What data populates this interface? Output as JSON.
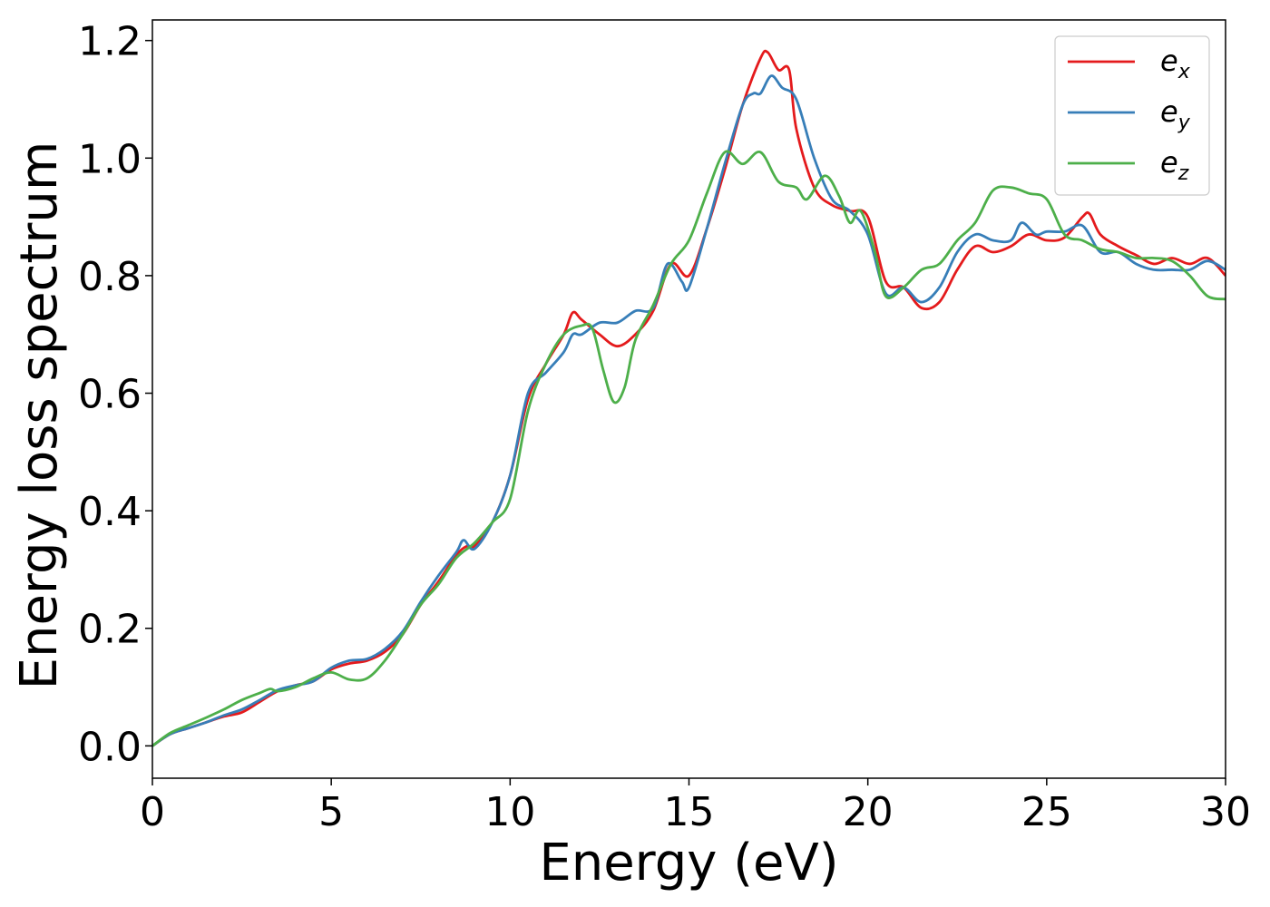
{
  "chart_data": {
    "type": "line",
    "title": "",
    "xlabel": "Energy (eV)",
    "ylabel": "Energy loss spectrum",
    "xlim": [
      0,
      30
    ],
    "ylim": [
      -0.055,
      1.235
    ],
    "x_ticks": [
      "0",
      "5",
      "10",
      "15",
      "20",
      "25",
      "30"
    ],
    "y_ticks": [
      "0.0",
      "0.2",
      "0.4",
      "0.6",
      "0.8",
      "1.0",
      "1.2"
    ],
    "grid": false,
    "legend_position": "top-right",
    "series": [
      {
        "name": "e_x",
        "legend_base": "e",
        "legend_sub": "x",
        "color": "#e41a1c",
        "points": [
          [
            0,
            0.0
          ],
          [
            0.5,
            0.02
          ],
          [
            1,
            0.03
          ],
          [
            1.5,
            0.04
          ],
          [
            2,
            0.05
          ],
          [
            2.5,
            0.057
          ],
          [
            3,
            0.075
          ],
          [
            3.5,
            0.093
          ],
          [
            4,
            0.103
          ],
          [
            4.5,
            0.11
          ],
          [
            5,
            0.13
          ],
          [
            5.5,
            0.14
          ],
          [
            6,
            0.145
          ],
          [
            6.5,
            0.16
          ],
          [
            7,
            0.19
          ],
          [
            7.5,
            0.24
          ],
          [
            8,
            0.28
          ],
          [
            8.5,
            0.325
          ],
          [
            8.8,
            0.34
          ],
          [
            9,
            0.34
          ],
          [
            9.5,
            0.38
          ],
          [
            10,
            0.46
          ],
          [
            10.5,
            0.59
          ],
          [
            11,
            0.65
          ],
          [
            11.5,
            0.7
          ],
          [
            11.75,
            0.737
          ],
          [
            12,
            0.725
          ],
          [
            12.5,
            0.7
          ],
          [
            13,
            0.68
          ],
          [
            13.5,
            0.7
          ],
          [
            14,
            0.74
          ],
          [
            14.5,
            0.82
          ],
          [
            15,
            0.8
          ],
          [
            15.5,
            0.88
          ],
          [
            16,
            0.98
          ],
          [
            16.5,
            1.09
          ],
          [
            17,
            1.17
          ],
          [
            17.2,
            1.18
          ],
          [
            17.5,
            1.15
          ],
          [
            17.8,
            1.15
          ],
          [
            18,
            1.05
          ],
          [
            18.5,
            0.95
          ],
          [
            19,
            0.92
          ],
          [
            19.5,
            0.91
          ],
          [
            20,
            0.9
          ],
          [
            20.5,
            0.79
          ],
          [
            21,
            0.78
          ],
          [
            21.5,
            0.745
          ],
          [
            22,
            0.755
          ],
          [
            22.5,
            0.81
          ],
          [
            23,
            0.85
          ],
          [
            23.5,
            0.84
          ],
          [
            24,
            0.85
          ],
          [
            24.5,
            0.87
          ],
          [
            25,
            0.86
          ],
          [
            25.5,
            0.865
          ],
          [
            26,
            0.9
          ],
          [
            26.2,
            0.905
          ],
          [
            26.5,
            0.87
          ],
          [
            27,
            0.85
          ],
          [
            27.5,
            0.835
          ],
          [
            28,
            0.82
          ],
          [
            28.5,
            0.83
          ],
          [
            29,
            0.82
          ],
          [
            29.5,
            0.83
          ],
          [
            30,
            0.8
          ]
        ]
      },
      {
        "name": "e_y",
        "legend_base": "e",
        "legend_sub": "y",
        "color": "#377eb8",
        "points": [
          [
            0,
            0.0
          ],
          [
            0.5,
            0.02
          ],
          [
            1,
            0.03
          ],
          [
            1.5,
            0.04
          ],
          [
            2,
            0.052
          ],
          [
            2.5,
            0.062
          ],
          [
            3,
            0.078
          ],
          [
            3.5,
            0.095
          ],
          [
            4,
            0.103
          ],
          [
            4.5,
            0.11
          ],
          [
            5,
            0.133
          ],
          [
            5.5,
            0.145
          ],
          [
            6,
            0.148
          ],
          [
            6.5,
            0.165
          ],
          [
            7,
            0.195
          ],
          [
            7.5,
            0.245
          ],
          [
            8,
            0.29
          ],
          [
            8.5,
            0.33
          ],
          [
            8.7,
            0.35
          ],
          [
            9,
            0.335
          ],
          [
            9.5,
            0.38
          ],
          [
            10,
            0.46
          ],
          [
            10.5,
            0.6
          ],
          [
            11,
            0.635
          ],
          [
            11.5,
            0.67
          ],
          [
            11.75,
            0.7
          ],
          [
            12,
            0.7
          ],
          [
            12.5,
            0.72
          ],
          [
            13,
            0.72
          ],
          [
            13.5,
            0.74
          ],
          [
            14,
            0.745
          ],
          [
            14.4,
            0.82
          ],
          [
            14.8,
            0.79
          ],
          [
            15,
            0.78
          ],
          [
            15.5,
            0.88
          ],
          [
            16,
            0.99
          ],
          [
            16.5,
            1.09
          ],
          [
            16.8,
            1.11
          ],
          [
            17,
            1.11
          ],
          [
            17.3,
            1.14
          ],
          [
            17.6,
            1.12
          ],
          [
            18,
            1.1
          ],
          [
            18.5,
            1.0
          ],
          [
            19,
            0.93
          ],
          [
            19.5,
            0.91
          ],
          [
            20,
            0.87
          ],
          [
            20.5,
            0.77
          ],
          [
            21,
            0.78
          ],
          [
            21.5,
            0.755
          ],
          [
            22,
            0.78
          ],
          [
            22.5,
            0.84
          ],
          [
            23,
            0.87
          ],
          [
            23.5,
            0.86
          ],
          [
            24,
            0.86
          ],
          [
            24.3,
            0.89
          ],
          [
            24.7,
            0.87
          ],
          [
            25,
            0.875
          ],
          [
            25.5,
            0.875
          ],
          [
            26,
            0.885
          ],
          [
            26.5,
            0.84
          ],
          [
            27,
            0.84
          ],
          [
            27.5,
            0.82
          ],
          [
            28,
            0.81
          ],
          [
            28.5,
            0.81
          ],
          [
            29,
            0.81
          ],
          [
            29.5,
            0.825
          ],
          [
            30,
            0.81
          ]
        ]
      },
      {
        "name": "e_z",
        "legend_base": "e",
        "legend_sub": "z",
        "color": "#4daf4a",
        "points": [
          [
            0,
            0.0
          ],
          [
            0.5,
            0.022
          ],
          [
            1,
            0.035
          ],
          [
            1.5,
            0.048
          ],
          [
            2,
            0.062
          ],
          [
            2.5,
            0.078
          ],
          [
            3,
            0.09
          ],
          [
            3.3,
            0.097
          ],
          [
            3.5,
            0.093
          ],
          [
            4,
            0.1
          ],
          [
            4.5,
            0.115
          ],
          [
            5,
            0.125
          ],
          [
            5.5,
            0.113
          ],
          [
            6,
            0.115
          ],
          [
            6.5,
            0.145
          ],
          [
            7,
            0.19
          ],
          [
            7.5,
            0.24
          ],
          [
            8,
            0.275
          ],
          [
            8.5,
            0.32
          ],
          [
            9,
            0.345
          ],
          [
            9.5,
            0.38
          ],
          [
            10,
            0.42
          ],
          [
            10.5,
            0.57
          ],
          [
            11,
            0.65
          ],
          [
            11.5,
            0.7
          ],
          [
            12,
            0.715
          ],
          [
            12.3,
            0.71
          ],
          [
            12.6,
            0.64
          ],
          [
            12.9,
            0.585
          ],
          [
            13.2,
            0.61
          ],
          [
            13.5,
            0.69
          ],
          [
            14,
            0.75
          ],
          [
            14.5,
            0.82
          ],
          [
            15,
            0.86
          ],
          [
            15.5,
            0.94
          ],
          [
            16,
            1.01
          ],
          [
            16.5,
            0.99
          ],
          [
            17,
            1.01
          ],
          [
            17.5,
            0.96
          ],
          [
            18,
            0.95
          ],
          [
            18.3,
            0.93
          ],
          [
            18.8,
            0.97
          ],
          [
            19.2,
            0.935
          ],
          [
            19.5,
            0.89
          ],
          [
            19.8,
            0.91
          ],
          [
            20.2,
            0.84
          ],
          [
            20.5,
            0.765
          ],
          [
            21,
            0.78
          ],
          [
            21.5,
            0.81
          ],
          [
            22,
            0.82
          ],
          [
            22.5,
            0.86
          ],
          [
            23,
            0.89
          ],
          [
            23.5,
            0.945
          ],
          [
            24,
            0.95
          ],
          [
            24.5,
            0.94
          ],
          [
            25,
            0.93
          ],
          [
            25.5,
            0.87
          ],
          [
            26,
            0.86
          ],
          [
            26.5,
            0.845
          ],
          [
            27,
            0.84
          ],
          [
            27.5,
            0.83
          ],
          [
            28,
            0.83
          ],
          [
            28.5,
            0.825
          ],
          [
            29,
            0.8
          ],
          [
            29.5,
            0.765
          ],
          [
            30,
            0.76
          ]
        ]
      }
    ]
  }
}
